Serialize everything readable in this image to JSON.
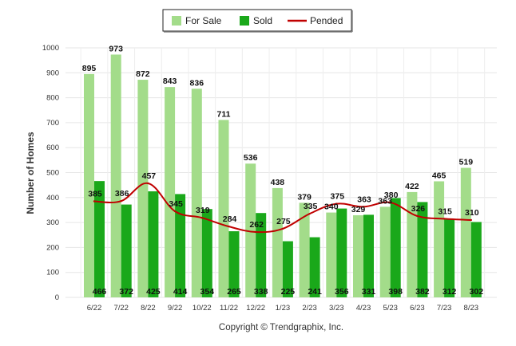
{
  "chart_data": {
    "type": "bar",
    "categories": [
      "6/22",
      "7/22",
      "8/22",
      "9/22",
      "10/22",
      "11/22",
      "12/22",
      "1/23",
      "2/23",
      "3/23",
      "4/23",
      "5/23",
      "6/23",
      "7/23",
      "8/23"
    ],
    "series": [
      {
        "name": "For Sale",
        "type": "bar",
        "color": "#a3dc8a",
        "values": [
          895,
          973,
          872,
          843,
          836,
          711,
          536,
          438,
          379,
          340,
          329,
          363,
          422,
          465,
          519
        ]
      },
      {
        "name": "Sold",
        "type": "bar",
        "color": "#1aa81a",
        "values": [
          466,
          372,
          425,
          414,
          354,
          265,
          338,
          225,
          241,
          356,
          331,
          398,
          382,
          312,
          302
        ]
      },
      {
        "name": "Pended",
        "type": "line",
        "color": "#c00000",
        "values": [
          385,
          386,
          457,
          345,
          319,
          284,
          262,
          275,
          335,
          375,
          363,
          380,
          326,
          315,
          310
        ]
      }
    ],
    "ylabel": "Number of Homes",
    "ylim": [
      0,
      1000
    ],
    "yticks": [
      0,
      100,
      200,
      300,
      400,
      500,
      600,
      700,
      800,
      900,
      1000
    ],
    "grid": true,
    "legend_position": "top-center"
  },
  "legend": {
    "for_sale": "For Sale",
    "sold": "Sold",
    "pended": "Pended"
  },
  "footer": {
    "credit": "Copyright © Trendgraphix, Inc."
  }
}
